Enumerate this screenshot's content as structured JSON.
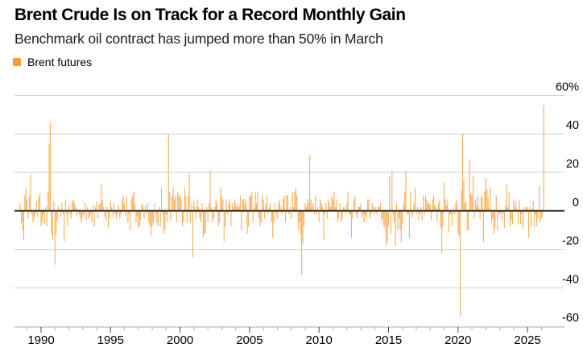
{
  "header": {
    "title": "Brent Crude Is on Track for a Record Monthly Gain",
    "subtitle": "Benchmark oil contract has jumped more than 50% in March"
  },
  "legend": {
    "label": "Brent futures",
    "swatch_color": "#F79D33"
  },
  "chart_data": {
    "type": "bar",
    "series_name": "Brent futures monthly percent change",
    "frequency": "monthly",
    "start_month": "1988-07",
    "end_month": "2026-03",
    "unit": "%",
    "values": [
      4,
      -6,
      -10,
      -15,
      8,
      12,
      6,
      -4,
      8,
      19,
      -2,
      -6,
      -4,
      -2,
      5,
      -3,
      7,
      9,
      -8,
      -6,
      -2,
      -7,
      2,
      -8,
      10,
      35,
      46,
      -12,
      -15,
      5,
      -28,
      -12,
      -5,
      2,
      1,
      -3,
      4,
      -2,
      -16,
      6,
      -2,
      -8,
      3,
      -2,
      -4,
      5,
      6,
      4,
      2,
      -3,
      1,
      -2,
      -4,
      -6,
      -2,
      -3,
      4,
      -5,
      2,
      -4,
      -3,
      -2,
      -6,
      3,
      -8,
      2,
      5,
      -4,
      3,
      4,
      14,
      6,
      2,
      -3,
      -5,
      2,
      -9,
      -4,
      6,
      2,
      -3,
      4,
      -2,
      -4,
      -2,
      3,
      -4,
      -2,
      6,
      8,
      4,
      -3,
      8,
      -6,
      -2,
      -10,
      6,
      8,
      10,
      4,
      -6,
      -3,
      -9,
      -8,
      -5,
      4,
      3,
      -4,
      3,
      -2,
      4,
      -6,
      -8,
      -13,
      -8,
      -6,
      4,
      -2,
      -6,
      -8,
      2,
      -8,
      12,
      -2,
      -12,
      -10,
      -2,
      -6,
      40,
      10,
      -5,
      8,
      12,
      6,
      8,
      -6,
      10,
      8,
      8,
      6,
      -8,
      -6,
      12,
      8,
      -6,
      8,
      19,
      -6,
      4,
      -24,
      5,
      2,
      -4,
      6,
      2,
      -4,
      -6,
      4,
      -14,
      -12,
      -12,
      2,
      -6,
      4,
      21,
      2,
      -6,
      -4,
      2,
      6,
      4,
      -8,
      -6,
      12,
      8,
      6,
      -16,
      -8,
      6,
      -2,
      4,
      6,
      -8,
      4,
      2,
      6,
      4,
      2,
      4,
      2,
      8,
      -10,
      6,
      6,
      4,
      6,
      -12,
      -8,
      8,
      8,
      10,
      -6,
      2,
      10,
      4,
      10,
      -4,
      -8,
      -6,
      8,
      6,
      -4,
      4,
      8,
      -2,
      2,
      4,
      -6,
      -14,
      -6,
      4,
      -2,
      -4,
      4,
      6,
      2,
      -2,
      6,
      8,
      -6,
      8,
      8,
      -2,
      2,
      -4,
      10,
      2,
      10,
      12,
      8,
      -10,
      -6,
      -12,
      -33,
      -17,
      -8,
      4,
      2,
      6,
      4,
      29,
      6,
      2,
      4,
      -2,
      8,
      -2,
      2,
      -6,
      6,
      4,
      2,
      -15,
      -2,
      4,
      -4,
      6,
      4,
      2,
      8,
      6,
      10,
      2,
      6,
      -6,
      -4,
      4,
      -6,
      -4,
      2,
      2,
      -2,
      4,
      10,
      -2,
      -2,
      -14,
      -4,
      6,
      8,
      -2,
      -4,
      2,
      2,
      4,
      -4,
      -2,
      -6,
      -2,
      -4,
      6,
      6,
      -4,
      -2,
      4,
      2,
      -2,
      2,
      -2,
      2,
      2,
      4,
      -6,
      -4,
      -8,
      -9,
      -18,
      -16,
      -8,
      18,
      -12,
      21,
      -2,
      -6,
      -18,
      4,
      -10,
      -4,
      -10,
      -16,
      -7,
      4,
      10,
      21,
      -2,
      -2,
      -14,
      10,
      -4,
      -2,
      4,
      12,
      -2,
      2,
      -5,
      -2,
      2,
      -5,
      8,
      -2,
      8,
      6,
      4,
      4,
      3,
      -5,
      6,
      8,
      3,
      2,
      -6,
      4,
      6,
      -9,
      -22,
      -8,
      15,
      6,
      3,
      6,
      -11,
      -2,
      -2,
      -8,
      2,
      -2,
      4,
      6,
      -12,
      -13,
      -55,
      11,
      40,
      16,
      4,
      5,
      -10,
      -10,
      27,
      9,
      8,
      18,
      -4,
      6,
      3,
      8,
      2,
      -4,
      8,
      7,
      -16,
      10,
      17,
      11,
      7,
      1,
      12,
      -6,
      -4,
      -12,
      -9,
      8,
      -10,
      -1,
      -2,
      -1,
      -5,
      -1,
      -9,
      3,
      14,
      2,
      10,
      -8,
      -5,
      -7,
      6,
      2,
      5,
      1,
      -7,
      6,
      -7,
      -2,
      -9,
      2,
      -1,
      2,
      2,
      -14,
      2,
      -8,
      1,
      5,
      -9,
      -2,
      -8,
      -4,
      13,
      -6,
      -4,
      -3,
      55
    ],
    "ylim": [
      -62,
      62
    ],
    "y_ticks": [
      60,
      40,
      20,
      0,
      -20,
      -40,
      -60
    ],
    "y_tick_labels": [
      "60%",
      "40",
      "20",
      "0",
      "-20",
      "-40",
      "-60"
    ],
    "x_tick_years": [
      1990,
      1995,
      2000,
      2005,
      2010,
      2015,
      2020,
      2025
    ],
    "x_minor_tick_start": 1989,
    "x_minor_tick_end": 2026,
    "grid": "horizontal",
    "legend_position": "top-left",
    "bar_color": "#F6A748",
    "zero_line_color": "#1A1A1A",
    "grid_color": "#CDCDCD",
    "axis_color": "#ABABAB",
    "major_tick_color": "#444444",
    "label_color": "#000000"
  }
}
